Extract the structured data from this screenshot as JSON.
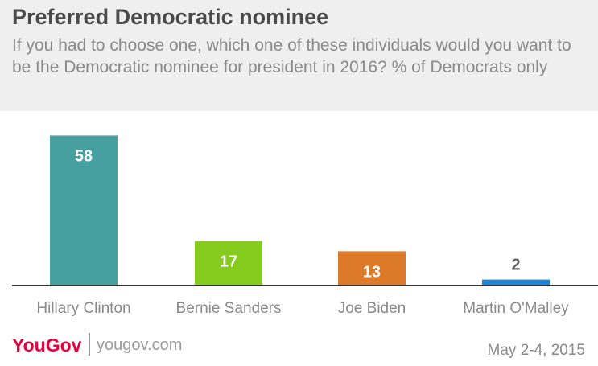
{
  "chart_data": {
    "type": "bar",
    "title": "Preferred Democratic nominee",
    "subtitle": "If you had to choose one, which one of these individuals would you want to be the Democratic nominee for president in 2016? % of Democrats only",
    "categories": [
      "Hillary Clinton",
      "Bernie Sanders",
      "Joe Biden",
      "Martin O'Malley"
    ],
    "values": [
      58,
      17,
      13,
      2
    ],
    "colors": [
      "#46a0a0",
      "#85cc1e",
      "#dc7a2a",
      "#1f85d6"
    ],
    "value_label_colors": [
      "#ffffff",
      "#ffffff",
      "#ffffff",
      "#666666"
    ],
    "ylim": [
      0,
      60
    ],
    "grid": false,
    "legend": "none"
  },
  "footer": {
    "brand": "YouGov",
    "site": "yougov.com",
    "date": "May 2-4, 2015"
  },
  "theme": {
    "axis_color": "#333333",
    "category_label_color": "#8a8a8a"
  }
}
